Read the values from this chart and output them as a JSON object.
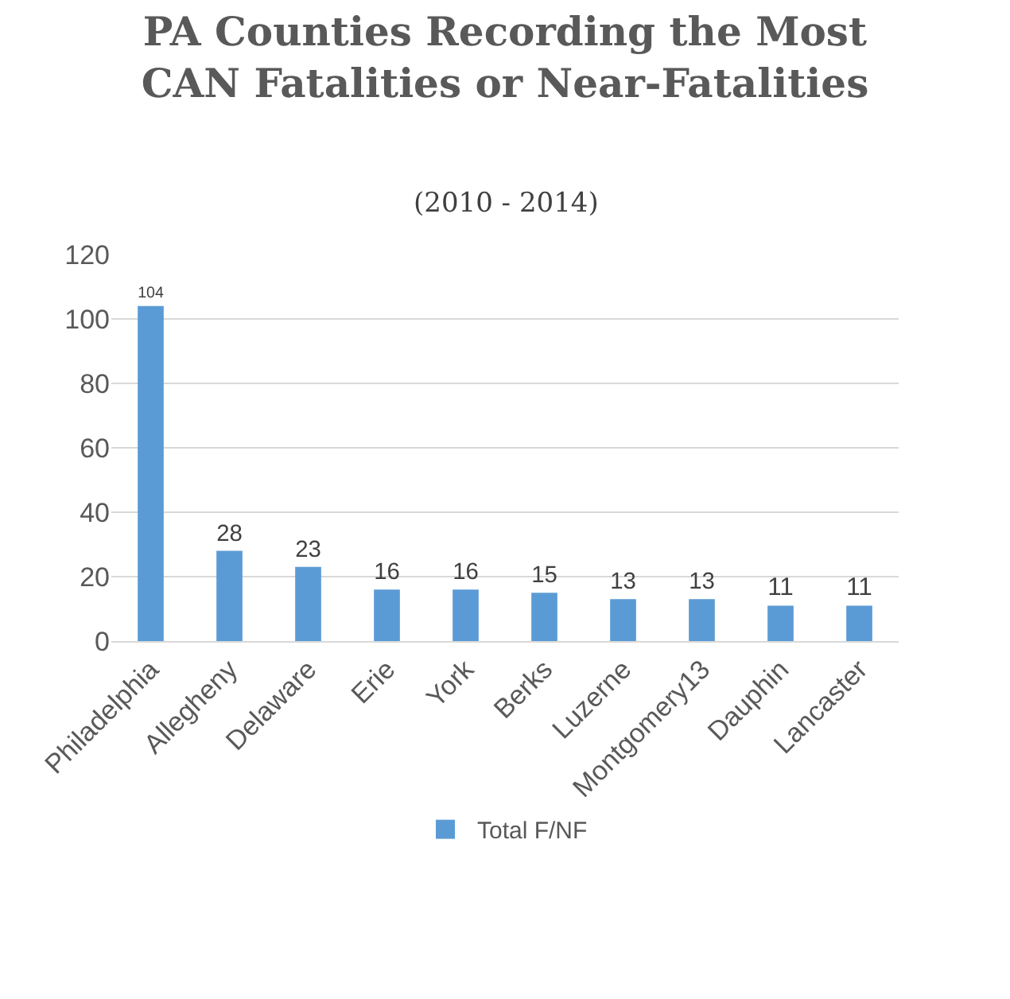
{
  "chart_data": {
    "type": "bar",
    "title": "PA Counties Recording the Most\nCAN Fatalities or Near-Fatalities",
    "subtitle": "(2010 - 2014)",
    "categories": [
      "Philadelphia",
      "Allegheny",
      "Delaware",
      "Erie",
      "York",
      "Berks",
      "Luzerne",
      "Montgomery13",
      "Dauphin",
      "Lancaster"
    ],
    "series": [
      {
        "name": "Total F/NF",
        "color": "#5b9bd5",
        "values": [
          104,
          28,
          23,
          16,
          16,
          15,
          13,
          13,
          11,
          11
        ]
      }
    ],
    "ylim": [
      0,
      120
    ],
    "yticks": [
      0,
      20,
      40,
      60,
      80,
      100,
      120
    ],
    "grid": "y",
    "legend": "bottom",
    "data_labels": true
  }
}
